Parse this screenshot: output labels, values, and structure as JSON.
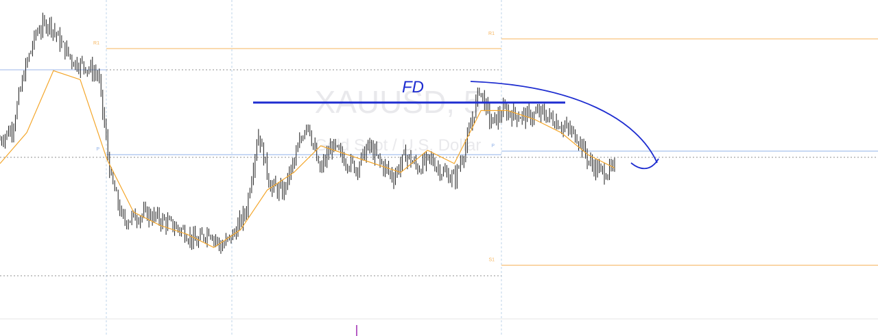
{
  "chart_data": {
    "type": "candlestick",
    "watermark": {
      "symbol": "XAUUSD, 5",
      "description": "Gold Spot / U.S. Dollar"
    },
    "price_range": [
      2306.0,
      2342.0
    ],
    "sessions": 3,
    "pivot_levels": [
      {
        "label": "R1",
        "session": 1,
        "value": 2336.5
      },
      {
        "label": "P",
        "session": 1,
        "value": 2324.5
      },
      {
        "label": "R1",
        "session": 2,
        "value": 2337.6
      },
      {
        "label": "P",
        "session": 2,
        "value": 2324.9
      },
      {
        "label": "S1",
        "session": 2,
        "value": 2312.0
      }
    ],
    "horizontal_dashed_prices": [
      2334.1,
      2324.2,
      2310.8
    ],
    "horizontal_solid_prices": [
      2334.1
    ],
    "close_series": [
      2326.2,
      2327.5,
      2334.0,
      2338.5,
      2339.5,
      2337.0,
      2335.0,
      2334.5,
      2333.5,
      2322.0,
      2317.0,
      2317.5,
      2317.8,
      2317.2,
      2316.5,
      2315.8,
      2314.5,
      2316.0,
      2314.0,
      2315.5,
      2318.0,
      2327.0,
      2321.0,
      2320.2,
      2324.0,
      2328.5,
      2322.5,
      2325.5,
      2324.0,
      2323.0,
      2325.5,
      2323.5,
      2322.0,
      2324.5,
      2323.0,
      2324.0,
      2322.5,
      2321.8,
      2326.0,
      2332.0,
      2328.0,
      2329.5,
      2329.0,
      2328.8,
      2329.2,
      2328.5,
      2327.5,
      2326.5,
      2323.5,
      2322.5,
      2322.8
    ],
    "ma_series": [
      2323.5,
      2327.0,
      2334.0,
      2333.0,
      2324.0,
      2318.0,
      2316.5,
      2315.5,
      2314.0,
      2316.0,
      2320.5,
      2322.5,
      2325.5,
      2324.5,
      2323.5,
      2322.5,
      2325.0,
      2323.5,
      2329.5,
      2329.5,
      2328.5,
      2327.0,
      2324.5,
      2323.0
    ],
    "annotations": [
      {
        "type": "text",
        "text": "FD"
      },
      {
        "type": "horizontal_line",
        "price": 2330.4,
        "color": "#1e2dd0"
      },
      {
        "type": "curved_arrow",
        "color": "#1e2dd0",
        "from_price": 2333.0,
        "to_price": 2325.0
      }
    ],
    "colors": {
      "candle": "#1a1a1a",
      "ma": "#f4a62a",
      "pivot_resistance": "#f6b45c",
      "pivot_p": "#8fb0e8",
      "annotation": "#1e2dd0",
      "time_marker": "#9c27b0"
    }
  }
}
